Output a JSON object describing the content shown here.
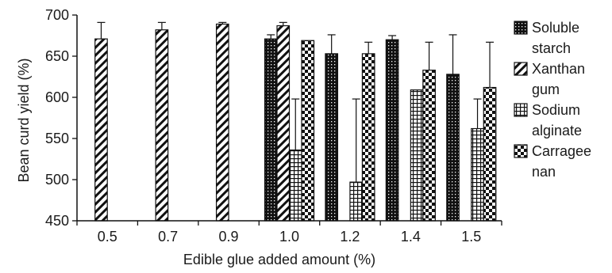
{
  "chart_data": {
    "type": "bar",
    "title": "",
    "xlabel": "Edible glue added amount (%)",
    "ylabel": "Bean curd yield (%)",
    "ylim": [
      450,
      700
    ],
    "yticks": [
      450,
      500,
      550,
      600,
      650,
      700
    ],
    "categories": [
      "0.5",
      "0.7",
      "0.9",
      "1.0",
      "1.2",
      "1.4",
      "1.5"
    ],
    "grid": false,
    "legend_position": "right",
    "series": [
      {
        "name": "Soluble starch",
        "legend_lines": [
          "Soluble",
          "starch"
        ],
        "pattern": "dotted-black",
        "values": [
          null,
          null,
          null,
          671,
          653,
          670,
          628
        ],
        "errors": [
          null,
          null,
          null,
          5,
          23,
          5,
          48
        ]
      },
      {
        "name": "Xanthan gum",
        "legend_lines": [
          "Xanthan",
          "gum"
        ],
        "pattern": "diagonal",
        "values": [
          671,
          682,
          689,
          687,
          null,
          null,
          null
        ],
        "errors": [
          20,
          9,
          2,
          4,
          null,
          null,
          null
        ]
      },
      {
        "name": "Sodium alginate",
        "legend_lines": [
          "Sodium",
          "alginate"
        ],
        "pattern": "grid",
        "values": [
          null,
          null,
          null,
          536,
          497,
          609,
          562
        ],
        "errors": [
          null,
          null,
          null,
          62,
          101,
          null,
          36
        ]
      },
      {
        "name": "Carrageenan",
        "legend_lines": [
          "Carragee",
          "nan"
        ],
        "pattern": "checker",
        "values": [
          null,
          null,
          null,
          669,
          653,
          633,
          612
        ],
        "errors": [
          null,
          null,
          null,
          null,
          14,
          34,
          55
        ]
      }
    ]
  }
}
